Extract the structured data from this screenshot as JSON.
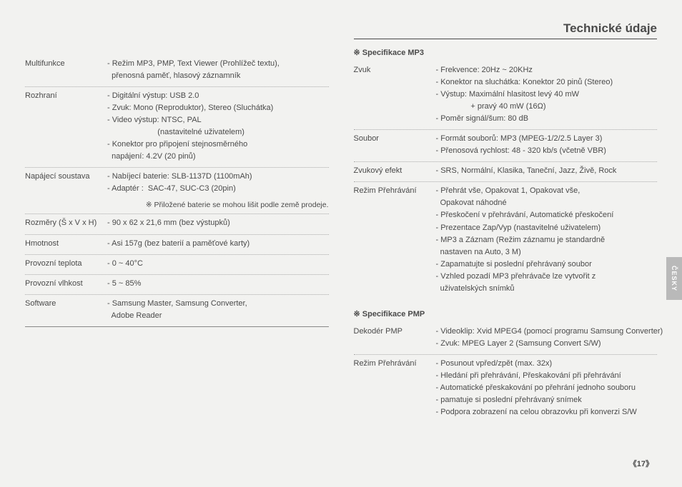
{
  "pageTitle": "Technické údaje",
  "left": {
    "rows": [
      {
        "label": "Multifunkce",
        "lines": [
          "- Režim MP3, PMP, Text Viewer (Prohlížeč textu),",
          "  přenosná paměť, hlasový záznamník"
        ]
      },
      {
        "label": "Rozhraní",
        "lines": [
          "- Digitální výstup: USB 2.0",
          "- Zvuk: Mono (Reproduktor), Stereo (Sluchátka)",
          "- Video výstup: NTSC, PAL",
          "                       (nastavitelné uživatelem)",
          "- Konektor pro připojení stejnosměrného",
          "  napájení: 4.2V (20 pinů)"
        ]
      },
      {
        "label": "Napájecí soustava",
        "lines": [
          "- Nabíjecí baterie: SLB-1137D (1100mAh)",
          "- Adaptér :  SAC-47, SUC-C3 (20pin)"
        ],
        "note": "※ Přiložené baterie se mohou lišit podle země prodeje."
      },
      {
        "label": "Rozměry (Š x V x H)",
        "lines": [
          "- 90 x 62 x 21,6 mm (bez výstupků)"
        ]
      },
      {
        "label": "Hmotnost",
        "lines": [
          "- Asi 157g (bez baterií a paměťové karty)"
        ]
      },
      {
        "label": "Provozní teplota",
        "lines": [
          "- 0 ~ 40°C"
        ]
      },
      {
        "label": "Provozní vlhkost",
        "lines": [
          "- 5 ~ 85%"
        ]
      },
      {
        "label": "Software",
        "lines": [
          "- Samsung Master, Samsung Converter,",
          "  Adobe Reader"
        ]
      }
    ]
  },
  "right": {
    "heading": "Technické údaje",
    "mp3head": "※ Specifikace MP3",
    "mp3rows": [
      {
        "label": "Zvuk",
        "lines": [
          "- Frekvence: 20Hz ~ 20KHz",
          "- Konektor na sluchátka: Konektor 20 pinů (Stereo)",
          "- Výstup: Maximální hlasitost levý 40 mW",
          "                + pravý 40 mW (16Ω)",
          "- Poměr signál/šum: 80 dB"
        ]
      },
      {
        "label": "Soubor",
        "lines": [
          "- Formát souborů: MP3 (MPEG-1/2/2.5 Layer 3)",
          "- Přenosová rychlost: 48 - 320 kb/s (včetně VBR)"
        ]
      },
      {
        "label": "Zvukový efekt",
        "lines": [
          "- SRS, Normální, Klasika, Taneční, Jazz, Živě, Rock"
        ]
      },
      {
        "label": "Režim Přehrávání",
        "lines": [
          "- Přehrát vše, Opakovat 1, Opakovat vše,",
          "  Opakovat náhodné",
          "- Přeskočení v přehrávání, Automatické přeskočení",
          "- Prezentace Zap/Vyp (nastavitelné uživatelem)",
          "- MP3 a Záznam (Režim záznamu je standardně",
          "  nastaven na Auto, 3 M)",
          "- Zapamatujte si poslední přehrávaný soubor",
          "- Vzhled pozadí MP3 přehrávače lze vytvořit z",
          "  uživatelských snímků"
        ]
      }
    ],
    "pmphead": "※ Specifikace PMP",
    "pmprows": [
      {
        "label": "Dekodér PMP",
        "lines": [
          "- Videoklip: Xvid MPEG4 (pomocí programu Samsung Converter)",
          "- Zvuk: MPEG Layer 2 (Samsung Convert S/W)"
        ]
      },
      {
        "label": "Režim Přehrávání",
        "lines": [
          "- Posunout vpřed/zpět (max. 32x)",
          "- Hledání při přehrávání, Přeskakování při přehrávání",
          "- Automatické přeskakování po přehrání jednoho souboru",
          "- pamatuje si poslední přehrávaný snímek",
          "- Podpora zobrazení na celou obrazovku při konverzi S/W"
        ]
      }
    ]
  },
  "sideTab": "ČESKY",
  "pageNum": "《17》"
}
